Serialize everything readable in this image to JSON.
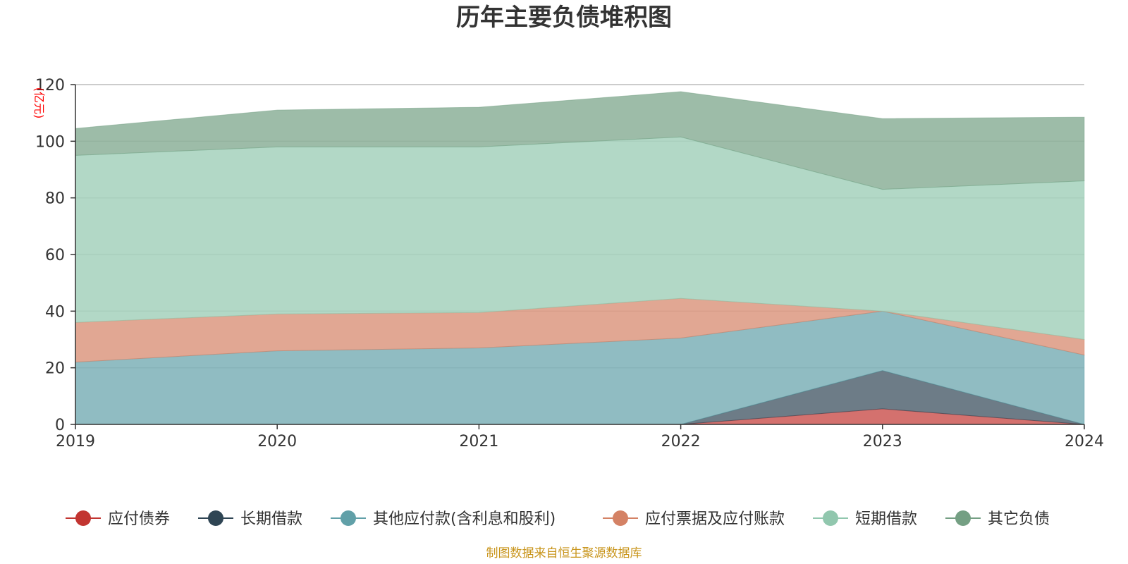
{
  "chart_data": {
    "type": "area",
    "stacked": true,
    "title": "历年主要负债堆积图",
    "unit": "(亿元)",
    "source": "制图数据来自恒生聚源数据库",
    "x": [
      "2019",
      "2020",
      "2021",
      "2022",
      "2023",
      "2024"
    ],
    "ylim": [
      0,
      120
    ],
    "yticks": [
      0,
      20,
      40,
      60,
      80,
      100,
      120
    ],
    "grid": true,
    "legend_position": "bottom",
    "series": [
      {
        "name": "应付债券",
        "color": "#c23531",
        "values": [
          0,
          0,
          0,
          0,
          5.5,
          0
        ]
      },
      {
        "name": "长期借款",
        "color": "#2f4554",
        "values": [
          0,
          0,
          0,
          0,
          13.5,
          0
        ]
      },
      {
        "name": "其他应付款(含利息和股利)",
        "color": "#61a0a8",
        "values": [
          22,
          26,
          27,
          30.5,
          21,
          24.5
        ]
      },
      {
        "name": "应付票据及应付账款",
        "color": "#d48265",
        "values": [
          14,
          13,
          12.5,
          14,
          0,
          5.5
        ]
      },
      {
        "name": "短期借款",
        "color": "#91c7ae",
        "values": [
          59,
          59,
          58.5,
          57,
          43,
          56
        ]
      },
      {
        "name": "其它负债",
        "color": "#749f83",
        "values": [
          9.5,
          13,
          14,
          16,
          25,
          22.5
        ]
      }
    ]
  }
}
